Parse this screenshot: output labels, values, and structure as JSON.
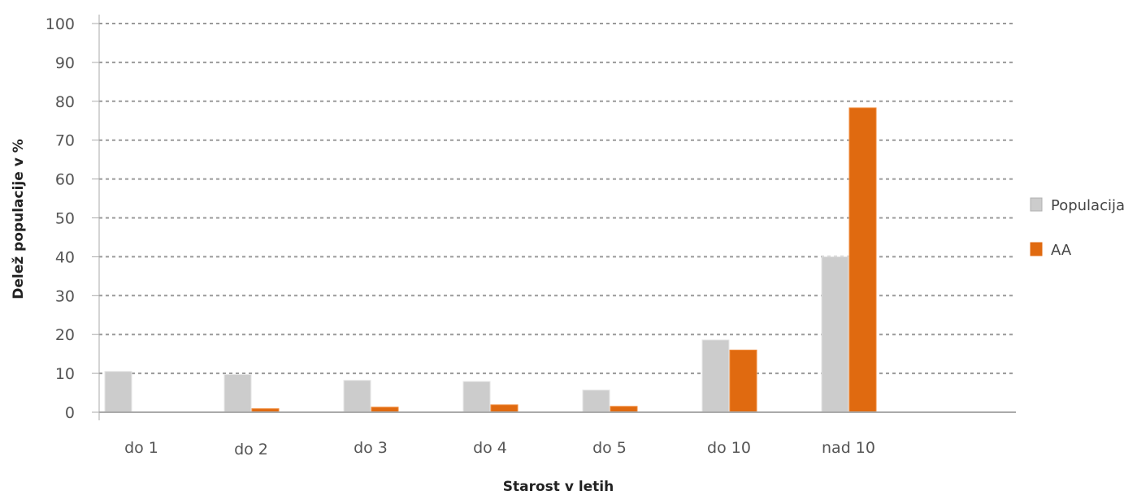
{
  "chart_data": {
    "type": "bar",
    "title": "",
    "xlabel": "Starost v letih",
    "ylabel": "Delež populacije v %",
    "categories": [
      "do 1",
      "do 2",
      "do 3",
      "do 4",
      "do 5",
      "do 10",
      "nad 10"
    ],
    "series": [
      {
        "name": "Populacija",
        "color": "#cccccc",
        "values": [
          10.5,
          9.7,
          8.2,
          7.9,
          5.7,
          18.6,
          40.0
        ]
      },
      {
        "name": "AA",
        "color": "#e06a10",
        "values": [
          0,
          0.9,
          1.3,
          1.9,
          1.5,
          16.0,
          78.3
        ]
      }
    ],
    "ylim": [
      0,
      100
    ],
    "yticks": [
      "0",
      "10",
      "20",
      "30",
      "40",
      "50",
      "60",
      "70",
      "80",
      "90",
      "100"
    ],
    "grid": true,
    "legend_position": "right"
  }
}
